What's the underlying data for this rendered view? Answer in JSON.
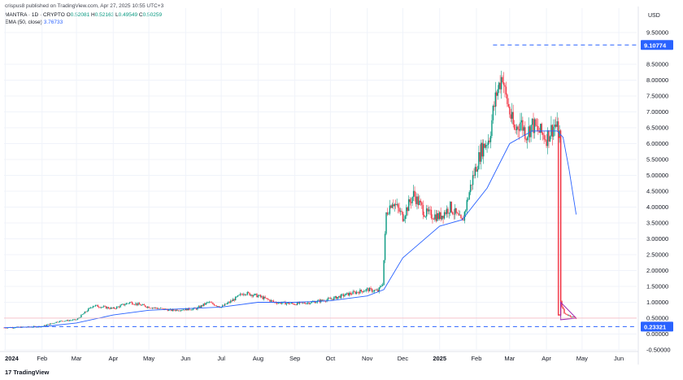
{
  "header": {
    "publisher": "crispus8 published on TradingView.com, Apr 27, 2025 10:55 UTC+3",
    "symbol": "MANTRA · 1D · CRYPTO",
    "ohlc": [
      {
        "label": "O",
        "value": "0.52081"
      },
      {
        "label": "H",
        "value": "0.52163"
      },
      {
        "label": "L",
        "value": "0.49549"
      },
      {
        "label": "C",
        "value": "0.50259"
      }
    ],
    "ema_label": "EMA (50, close)",
    "ema_value": "3.76733",
    "currency": "USD"
  },
  "footer": {
    "logo_text": "TradingView",
    "logo_mark": "17"
  },
  "colors": {
    "up": "#089981",
    "down": "#f23645",
    "ema": "#2962ff",
    "price_tag": "#2962ff",
    "grid": "#f0f3fa",
    "text": "#131722",
    "projection": "#9c27b0"
  },
  "chart_data": {
    "type": "candlestick",
    "y_axis_ticks": [
      "-0.50000",
      "0.00000",
      "0.50000",
      "1.00000",
      "1.50000",
      "2.00000",
      "2.50000",
      "3.00000",
      "3.50000",
      "4.00000",
      "4.50000",
      "5.00000",
      "5.50000",
      "6.00000",
      "6.50000",
      "7.00000",
      "7.50000",
      "8.00000",
      "8.50000",
      "9.50000"
    ],
    "ylim": [
      -0.5,
      9.5
    ],
    "x_axis_ticks": [
      {
        "label": "2024",
        "date": "2024-01-01",
        "bold": true
      },
      {
        "label": "Feb",
        "date": "2024-02-01"
      },
      {
        "label": "Mar",
        "date": "2024-03-01"
      },
      {
        "label": "Apr",
        "date": "2024-04-01"
      },
      {
        "label": "May",
        "date": "2024-05-01"
      },
      {
        "label": "Jun",
        "date": "2024-06-01"
      },
      {
        "label": "Jul",
        "date": "2024-07-01"
      },
      {
        "label": "Aug",
        "date": "2024-08-01"
      },
      {
        "label": "Sep",
        "date": "2024-09-01"
      },
      {
        "label": "Oct",
        "date": "2024-10-01"
      },
      {
        "label": "Nov",
        "date": "2024-11-01"
      },
      {
        "label": "Dec",
        "date": "2024-12-01"
      },
      {
        "label": "2025",
        "date": "2025-01-01",
        "bold": true
      },
      {
        "label": "Feb",
        "date": "2025-02-01"
      },
      {
        "label": "Mar",
        "date": "2025-03-01"
      },
      {
        "label": "Apr",
        "date": "2025-04-01"
      },
      {
        "label": "May",
        "date": "2025-05-01"
      },
      {
        "label": "Jun",
        "date": "2025-06-01"
      }
    ],
    "x_range": [
      "2023-12-31",
      "2025-06-16"
    ],
    "price_path": [
      [
        "2023-12-31",
        0.2
      ],
      [
        "2024-01-20",
        0.22
      ],
      [
        "2024-02-01",
        0.24
      ],
      [
        "2024-02-15",
        0.4
      ],
      [
        "2024-03-01",
        0.45
      ],
      [
        "2024-03-15",
        0.9
      ],
      [
        "2024-04-01",
        0.8
      ],
      [
        "2024-04-15",
        1.0
      ],
      [
        "2024-05-01",
        0.85
      ],
      [
        "2024-05-20",
        0.75
      ],
      [
        "2024-06-10",
        0.8
      ],
      [
        "2024-06-20",
        1.0
      ],
      [
        "2024-07-01",
        0.85
      ],
      [
        "2024-07-10",
        1.05
      ],
      [
        "2024-07-20",
        1.3
      ],
      [
        "2024-08-01",
        1.2
      ],
      [
        "2024-08-15",
        1.0
      ],
      [
        "2024-09-01",
        0.95
      ],
      [
        "2024-09-15",
        1.0
      ],
      [
        "2024-10-01",
        1.1
      ],
      [
        "2024-10-15",
        1.25
      ],
      [
        "2024-11-01",
        1.4
      ],
      [
        "2024-11-10",
        1.35
      ],
      [
        "2024-11-14",
        1.6
      ],
      [
        "2024-11-17",
        3.8
      ],
      [
        "2024-11-22",
        4.2
      ],
      [
        "2024-12-01",
        3.7
      ],
      [
        "2024-12-10",
        4.4
      ],
      [
        "2024-12-20",
        3.8
      ],
      [
        "2025-01-01",
        3.7
      ],
      [
        "2025-01-10",
        4.0
      ],
      [
        "2025-01-20",
        3.5
      ],
      [
        "2025-01-28",
        4.8
      ],
      [
        "2025-02-05",
        5.8
      ],
      [
        "2025-02-12",
        6.2
      ],
      [
        "2025-02-15",
        7.0
      ],
      [
        "2025-02-18",
        7.6
      ],
      [
        "2025-02-23",
        8.2
      ],
      [
        "2025-02-25",
        7.6
      ],
      [
        "2025-03-01",
        7.0
      ],
      [
        "2025-03-05",
        6.4
      ],
      [
        "2025-03-10",
        6.7
      ],
      [
        "2025-03-15",
        6.3
      ],
      [
        "2025-03-20",
        6.6
      ],
      [
        "2025-03-25",
        6.4
      ],
      [
        "2025-04-01",
        6.2
      ],
      [
        "2025-04-08",
        6.6
      ],
      [
        "2025-04-12",
        6.3
      ],
      [
        "2025-04-13",
        1.0
      ],
      [
        "2025-04-16",
        0.65
      ],
      [
        "2025-04-22",
        0.55
      ],
      [
        "2025-04-26",
        0.5
      ]
    ],
    "ema_path": [
      [
        "2023-12-31",
        0.2
      ],
      [
        "2024-02-01",
        0.23
      ],
      [
        "2024-03-01",
        0.35
      ],
      [
        "2024-04-01",
        0.6
      ],
      [
        "2024-05-01",
        0.75
      ],
      [
        "2024-06-01",
        0.8
      ],
      [
        "2024-07-01",
        0.85
      ],
      [
        "2024-08-01",
        1.0
      ],
      [
        "2024-09-01",
        1.0
      ],
      [
        "2024-10-01",
        1.05
      ],
      [
        "2024-11-01",
        1.2
      ],
      [
        "2024-11-15",
        1.4
      ],
      [
        "2024-12-01",
        2.4
      ],
      [
        "2025-01-01",
        3.4
      ],
      [
        "2025-01-20",
        3.6
      ],
      [
        "2025-02-10",
        4.6
      ],
      [
        "2025-03-01",
        6.0
      ],
      [
        "2025-03-20",
        6.4
      ],
      [
        "2025-04-10",
        6.4
      ],
      [
        "2025-04-15",
        6.2
      ],
      [
        "2025-04-20",
        5.2
      ],
      [
        "2025-04-26",
        3.76733
      ]
    ],
    "high_line": {
      "value": 9.10774,
      "label": "9.10774",
      "from": "2025-02-15"
    },
    "low_line": {
      "value": 0.23321,
      "label": "0.23321",
      "from": "2024-01-28"
    },
    "current_price_line": 0.50259,
    "crash_box": {
      "from": "2025-04-11",
      "to": "2025-04-13",
      "top": 6.2,
      "bottom": 0.6
    },
    "triangle": [
      [
        "2025-04-13",
        0.45
      ],
      [
        "2025-04-13",
        1.0
      ],
      [
        "2025-04-26",
        0.5
      ]
    ]
  }
}
